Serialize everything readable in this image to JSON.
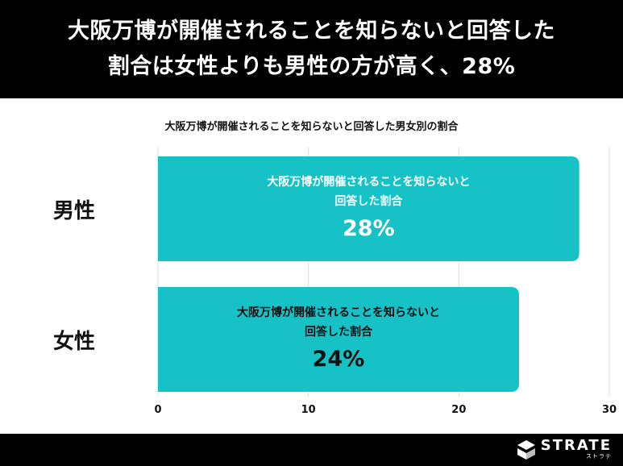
{
  "header": {
    "line1": "大阪万博が開催されることを知らないと回答した",
    "line2": "割合は女性よりも男性の方が高く、28%"
  },
  "chart_data": {
    "type": "bar",
    "orientation": "horizontal",
    "title": "大阪万博が開催されることを知らないと回答した男女別の割合",
    "categories": [
      "男性",
      "女性"
    ],
    "values": [
      28,
      24
    ],
    "bar_label_line1": "大阪万博が開催されることを知らないと",
    "bar_label_line2": "回答した割合",
    "value_labels": [
      "28%",
      "24%"
    ],
    "xlim": [
      0,
      30
    ],
    "xticks": [
      "0",
      "10",
      "20",
      "30"
    ],
    "grid": true,
    "bar_color": "#17c2c7",
    "bar_text_colors": [
      "#ffffff",
      "#111111"
    ]
  },
  "footer": {
    "logo_name": "STRATE",
    "logo_sub": "ストラテ"
  }
}
